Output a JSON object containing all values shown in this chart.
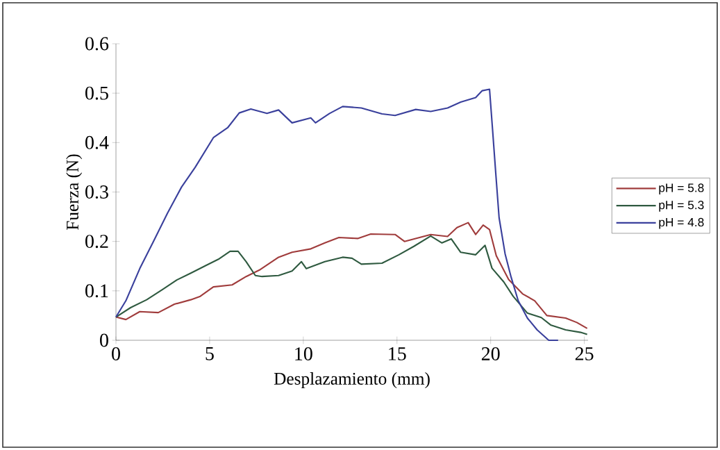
{
  "chart_data": {
    "type": "line",
    "xlabel": "Desplazamiento (mm)",
    "ylabel": "Fuerza (N)",
    "xlim": [
      0,
      25.2
    ],
    "ylim": [
      0,
      0.6
    ],
    "xticks": [
      0,
      5,
      10,
      15,
      20,
      25
    ],
    "yticks": [
      0,
      0.1,
      0.2,
      0.3,
      0.4,
      0.5,
      0.6
    ],
    "legend": "right",
    "marker": "none",
    "line_style": "solid",
    "series": [
      {
        "name": "pH = 5.8",
        "color": "#a03c3c",
        "x": [
          0,
          0.53,
          1.27,
          2.26,
          3.12,
          3.99,
          4.5,
          5.2,
          6.2,
          6.95,
          7.7,
          8.68,
          9.4,
          10.4,
          11.15,
          11.9,
          12.9,
          13.6,
          14.9,
          15.4,
          16.8,
          17.7,
          18.2,
          18.8,
          19.2,
          19.6,
          19.94,
          20.3,
          20.96,
          21.7,
          22.35,
          23.0,
          24.0,
          24.6,
          25.15
        ],
        "values": [
          0.047,
          0.042,
          0.058,
          0.056,
          0.073,
          0.082,
          0.089,
          0.108,
          0.112,
          0.129,
          0.143,
          0.168,
          0.178,
          0.185,
          0.197,
          0.208,
          0.206,
          0.215,
          0.214,
          0.2,
          0.214,
          0.21,
          0.228,
          0.238,
          0.214,
          0.233,
          0.224,
          0.171,
          0.123,
          0.094,
          0.08,
          0.05,
          0.045,
          0.036,
          0.024
        ]
      },
      {
        "name": "pH = 5.3",
        "color": "#2f5a40",
        "x": [
          0,
          0.78,
          1.64,
          2.5,
          3.25,
          4.0,
          4.73,
          5.47,
          6.09,
          6.52,
          6.95,
          7.44,
          7.8,
          8.68,
          9.4,
          9.9,
          10.16,
          11.15,
          12.1,
          12.6,
          13.1,
          14.2,
          15.1,
          15.9,
          16.8,
          17.4,
          17.9,
          18.4,
          19.2,
          19.7,
          20.07,
          20.7,
          21.2,
          21.96,
          22.7,
          23.2,
          24.0,
          24.8,
          25.15
        ],
        "values": [
          0.047,
          0.066,
          0.082,
          0.103,
          0.122,
          0.136,
          0.15,
          0.164,
          0.18,
          0.18,
          0.159,
          0.131,
          0.129,
          0.131,
          0.14,
          0.159,
          0.145,
          0.159,
          0.168,
          0.166,
          0.154,
          0.156,
          0.173,
          0.19,
          0.211,
          0.197,
          0.205,
          0.178,
          0.173,
          0.192,
          0.146,
          0.118,
          0.089,
          0.055,
          0.046,
          0.031,
          0.021,
          0.016,
          0.012
        ]
      },
      {
        "name": "pH = 4.8",
        "color": "#3a409c",
        "x": [
          0,
          0.53,
          1.27,
          2.0,
          2.75,
          3.5,
          4.23,
          5.2,
          5.96,
          6.58,
          7.2,
          8.06,
          8.68,
          9.4,
          10.4,
          10.65,
          11.4,
          12.1,
          13.1,
          14.2,
          14.9,
          16.0,
          16.8,
          17.7,
          18.4,
          19.2,
          19.55,
          19.94,
          20.1,
          20.26,
          20.45,
          20.77,
          21.09,
          21.47,
          21.96,
          22.48,
          23.1,
          23.6
        ],
        "values": [
          0.047,
          0.08,
          0.145,
          0.2,
          0.257,
          0.31,
          0.35,
          0.41,
          0.43,
          0.46,
          0.468,
          0.459,
          0.466,
          0.44,
          0.45,
          0.44,
          0.459,
          0.473,
          0.47,
          0.458,
          0.455,
          0.467,
          0.463,
          0.47,
          0.482,
          0.491,
          0.505,
          0.508,
          0.427,
          0.344,
          0.248,
          0.175,
          0.128,
          0.08,
          0.045,
          0.021,
          0,
          0
        ]
      }
    ]
  }
}
